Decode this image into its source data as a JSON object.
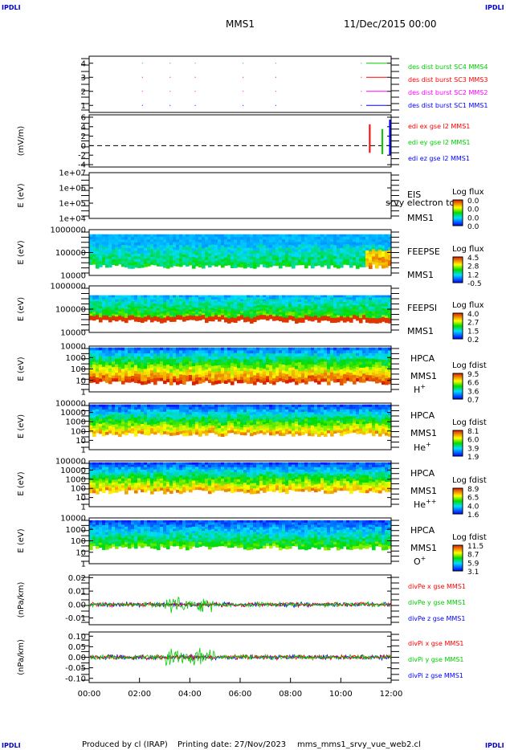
{
  "corner_label": "IPDLI",
  "header": {
    "spacecraft": "MMS1",
    "date": "11/Dec/2015 00:00"
  },
  "footer": {
    "produced_by": "Produced by cl (IRAP)",
    "printing_date": "Printing date: 27/Nov/2023",
    "filename": "mms_mms1_srvy_vue_web2.cl"
  },
  "colors": {
    "red": "#ff0000",
    "green": "#00cc00",
    "blue": "#0000ff",
    "magenta": "#ff00ff",
    "orange": "#ff9900",
    "yellow": "#ffff00",
    "cyan": "#00ffff"
  },
  "chart_data": [
    {
      "id": "burst",
      "type": "scatter",
      "ylim": [
        0.5,
        4.5
      ],
      "ytick_labels": [
        "1",
        "2",
        "3",
        "4"
      ],
      "ytick_values": [
        1,
        2,
        3,
        4
      ],
      "series": [
        {
          "name": "des dist burst SC1 MMS1",
          "color": "#0000ff",
          "y": 1
        },
        {
          "name": "des dist burst SC2 MMS2",
          "color": "#ff00ff",
          "y": 2
        },
        {
          "name": "des dist burst SC3 MMS3",
          "color": "#ff0000",
          "y": 3
        },
        {
          "name": "des dist burst SC4 MMS4",
          "color": "#00cc00",
          "y": 4
        }
      ],
      "x": [
        2.1,
        3.2,
        4.2,
        6.1,
        7.4,
        10.8
      ]
    },
    {
      "id": "edi",
      "type": "line",
      "ylabel": "(mV/m)",
      "ylim": [
        -4.5,
        6.5
      ],
      "ytick_labels": [
        "6",
        "4",
        "2",
        "0",
        "-2",
        "-4"
      ],
      "ytick_values": [
        6,
        4,
        2,
        0,
        -2,
        -4
      ],
      "reference_line": 0,
      "series": [
        {
          "name": "edi ex gse l2 MMS1",
          "color": "#ff0000"
        },
        {
          "name": "edi ey gse l2 MMS1",
          "color": "#00cc00"
        },
        {
          "name": "edi ez gse l2 MMS1",
          "color": "#0000ff"
        }
      ],
      "spikes": [
        {
          "x": 11.15,
          "ymin": -1.5,
          "ymax": 4.5
        },
        {
          "x": 11.65,
          "ymin": -1.8,
          "ymax": 3.5
        },
        {
          "x": 11.95,
          "ymin": -2.0,
          "ymax": 5.5
        }
      ]
    },
    {
      "id": "eis",
      "type": "heatmap",
      "ylabel": "E (eV)",
      "ytick_labels": [
        "1e+07",
        "1e+06",
        "1e+05",
        "1e+04"
      ],
      "instrument": [
        "EIS",
        "MMS1"
      ],
      "overlay_text": "srvy electron to",
      "colorbar_title": "Log flux",
      "colorbar_ticks": [
        "0.0",
        "0.0",
        "0.0",
        "0.0"
      ],
      "empty": true
    },
    {
      "id": "feepse",
      "type": "heatmap",
      "ylabel": "E (eV)",
      "ytick_labels": [
        "1000000",
        "100000",
        "10000"
      ],
      "instrument": [
        "FEEPSE",
        "MMS1"
      ],
      "colorbar_title": "Log flux",
      "colorbar_ticks": [
        "4.5",
        "2.8",
        "1.2",
        "-0.5"
      ]
    },
    {
      "id": "feepsi",
      "type": "heatmap",
      "ylabel": "E (eV)",
      "ytick_labels": [
        "1000000",
        "100000",
        "10000"
      ],
      "instrument": [
        "FEEPSI",
        "MMS1"
      ],
      "colorbar_title": "Log flux",
      "colorbar_ticks": [
        "4.0",
        "2.7",
        "1.5",
        "0.2"
      ]
    },
    {
      "id": "hpca_h",
      "type": "heatmap",
      "ylabel": "E (eV)",
      "ytick_labels": [
        "10000",
        "1000",
        "100",
        "10",
        "1"
      ],
      "instrument": [
        "HPCA",
        "MMS1"
      ],
      "species": "H",
      "species_sup": "+",
      "colorbar_title": "Log fdist",
      "colorbar_ticks": [
        "9.5",
        "6.6",
        "3.6",
        "0.7"
      ]
    },
    {
      "id": "hpca_he",
      "type": "heatmap",
      "ylabel": "E (eV)",
      "ytick_labels": [
        "100000",
        "10000",
        "1000",
        "100",
        "10",
        "1"
      ],
      "instrument": [
        "HPCA",
        "MMS1"
      ],
      "species": "He",
      "species_sup": "+",
      "colorbar_title": "Log fdist",
      "colorbar_ticks": [
        "8.1",
        "6.0",
        "3.9",
        "1.9"
      ]
    },
    {
      "id": "hpca_he2",
      "type": "heatmap",
      "ylabel": "E (eV)",
      "ytick_labels": [
        "100000",
        "10000",
        "1000",
        "100",
        "10",
        "1"
      ],
      "instrument": [
        "HPCA",
        "MMS1"
      ],
      "species": "He",
      "species_sup": "++",
      "colorbar_title": "Log fdist",
      "colorbar_ticks": [
        "8.9",
        "6.5",
        "4.0",
        "1.6"
      ]
    },
    {
      "id": "hpca_o",
      "type": "heatmap",
      "ylabel": "E (eV)",
      "ytick_labels": [
        "10000",
        "1000",
        "100",
        "10",
        "1"
      ],
      "instrument": [
        "HPCA",
        "MMS1"
      ],
      "species": "O",
      "species_sup": "+",
      "colorbar_title": "Log fdist",
      "colorbar_ticks": [
        "11.5",
        "8.7",
        "5.9",
        "3.1"
      ]
    },
    {
      "id": "divpe",
      "type": "line",
      "ylabel": "(nPa/km)",
      "ylim": [
        -0.015,
        0.022
      ],
      "ytick_labels": [
        "0.02",
        "0.01",
        "0.00",
        "-0.01"
      ],
      "ytick_values": [
        0.02,
        0.01,
        0.0,
        -0.01
      ],
      "series": [
        {
          "name": "divPe x gse MMS1",
          "color": "#ff0000"
        },
        {
          "name": "divPe y gse MMS1",
          "color": "#00cc00"
        },
        {
          "name": "divPe z gse MMS1",
          "color": "#0000ff"
        }
      ]
    },
    {
      "id": "divpi",
      "type": "line",
      "ylabel": "(nPa/km)",
      "ylim": [
        -0.12,
        0.12
      ],
      "ytick_labels": [
        "0.10",
        "0.05",
        "0.00",
        "-0.05",
        "-0.10"
      ],
      "ytick_values": [
        0.1,
        0.05,
        0.0,
        -0.05,
        -0.1
      ],
      "series": [
        {
          "name": "divPi x gse MMS1",
          "color": "#ff0000"
        },
        {
          "name": "divPi y gse MMS1",
          "color": "#00cc00"
        },
        {
          "name": "divPi z gse MMS1",
          "color": "#0000ff"
        }
      ]
    }
  ],
  "time_axis": {
    "range_hours": [
      0,
      12
    ],
    "tick_labels": [
      "00:00",
      "02:00",
      "04:00",
      "06:00",
      "08:00",
      "10:00",
      "12:00"
    ]
  }
}
